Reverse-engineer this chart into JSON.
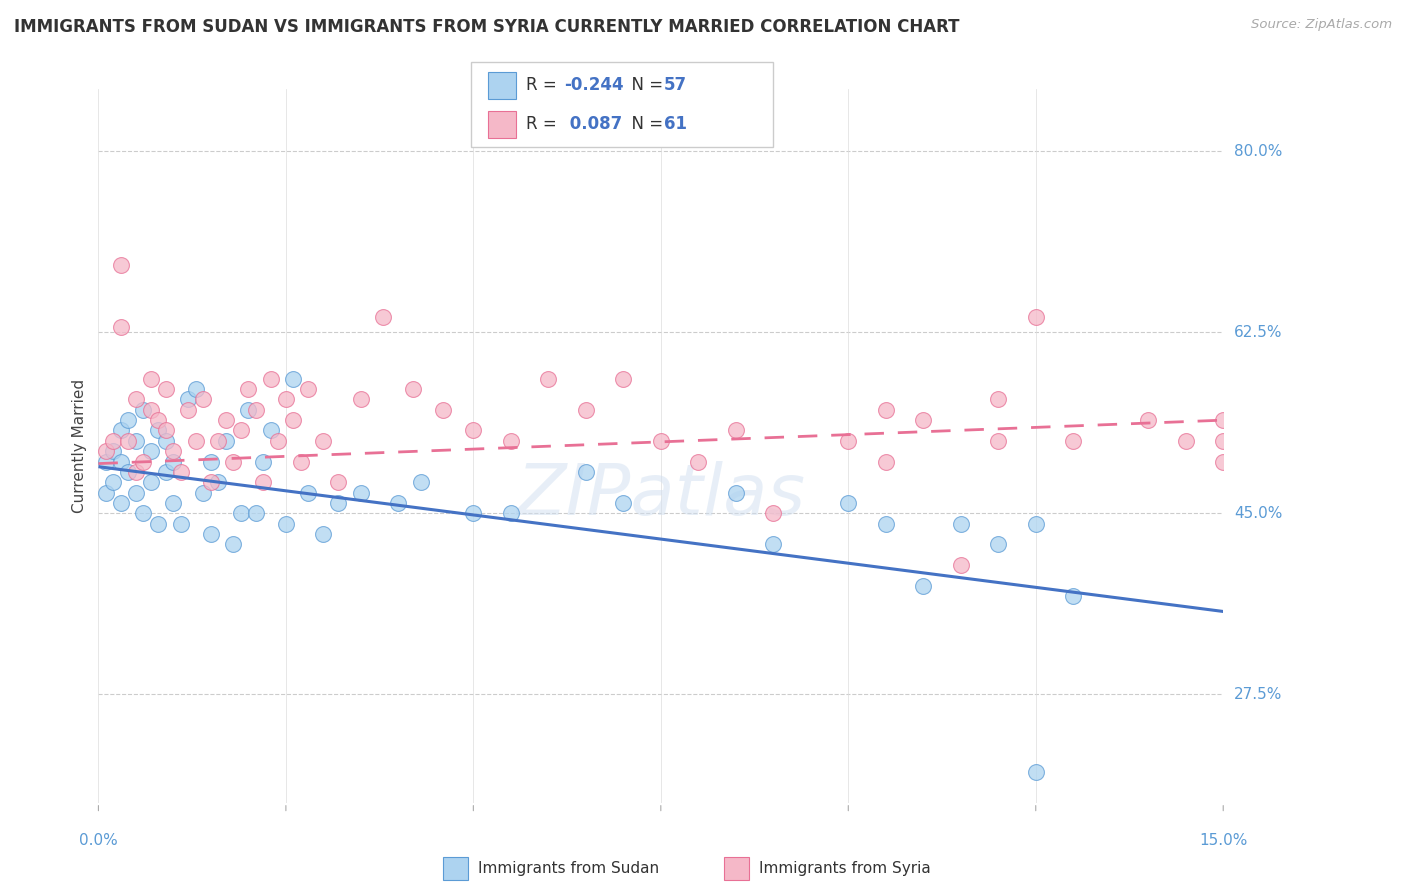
{
  "title": "IMMIGRANTS FROM SUDAN VS IMMIGRANTS FROM SYRIA CURRENTLY MARRIED CORRELATION CHART",
  "source": "Source: ZipAtlas.com",
  "ylabel": "Currently Married",
  "y_ticks": [
    0.275,
    0.45,
    0.625,
    0.8
  ],
  "y_tick_labels": [
    "27.5%",
    "45.0%",
    "62.5%",
    "80.0%"
  ],
  "x_ticks": [
    0.0,
    0.025,
    0.05,
    0.075,
    0.1,
    0.125,
    0.15
  ],
  "x_range": [
    0.0,
    0.15
  ],
  "y_range": [
    0.17,
    0.86
  ],
  "sudan_R": -0.244,
  "sudan_N": 57,
  "syria_R": 0.087,
  "syria_N": 61,
  "sudan_color": "#ADD3F0",
  "syria_color": "#F5B8C8",
  "sudan_edge_color": "#5B9BD5",
  "syria_edge_color": "#E87095",
  "sudan_line_color": "#4472C4",
  "syria_line_color": "#E87095",
  "legend_label_sudan": "Immigrants from Sudan",
  "legend_label_syria": "Immigrants from Syria",
  "sudan_trend_x": [
    0.0,
    0.15
  ],
  "sudan_trend_y": [
    0.495,
    0.355
  ],
  "syria_trend_x": [
    0.0,
    0.15
  ],
  "syria_trend_y": [
    0.498,
    0.54
  ],
  "sudan_x": [
    0.001,
    0.001,
    0.002,
    0.002,
    0.003,
    0.003,
    0.003,
    0.004,
    0.004,
    0.005,
    0.005,
    0.006,
    0.006,
    0.007,
    0.007,
    0.008,
    0.008,
    0.009,
    0.009,
    0.01,
    0.01,
    0.011,
    0.012,
    0.013,
    0.014,
    0.015,
    0.015,
    0.016,
    0.017,
    0.018,
    0.019,
    0.02,
    0.021,
    0.022,
    0.023,
    0.025,
    0.026,
    0.028,
    0.03,
    0.032,
    0.035,
    0.04,
    0.043,
    0.05,
    0.055,
    0.065,
    0.07,
    0.085,
    0.09,
    0.1,
    0.105,
    0.11,
    0.115,
    0.12,
    0.125,
    0.13,
    0.125
  ],
  "sudan_y": [
    0.5,
    0.47,
    0.51,
    0.48,
    0.53,
    0.5,
    0.46,
    0.54,
    0.49,
    0.52,
    0.47,
    0.55,
    0.45,
    0.51,
    0.48,
    0.53,
    0.44,
    0.52,
    0.49,
    0.5,
    0.46,
    0.44,
    0.56,
    0.57,
    0.47,
    0.43,
    0.5,
    0.48,
    0.52,
    0.42,
    0.45,
    0.55,
    0.45,
    0.5,
    0.53,
    0.44,
    0.58,
    0.47,
    0.43,
    0.46,
    0.47,
    0.46,
    0.48,
    0.45,
    0.45,
    0.49,
    0.46,
    0.47,
    0.42,
    0.46,
    0.44,
    0.38,
    0.44,
    0.42,
    0.44,
    0.37,
    0.2
  ],
  "syria_x": [
    0.001,
    0.002,
    0.003,
    0.003,
    0.004,
    0.005,
    0.005,
    0.006,
    0.007,
    0.007,
    0.008,
    0.009,
    0.009,
    0.01,
    0.011,
    0.012,
    0.013,
    0.014,
    0.015,
    0.016,
    0.017,
    0.018,
    0.019,
    0.02,
    0.021,
    0.022,
    0.023,
    0.024,
    0.025,
    0.026,
    0.027,
    0.028,
    0.03,
    0.032,
    0.035,
    0.038,
    0.042,
    0.046,
    0.05,
    0.055,
    0.06,
    0.065,
    0.07,
    0.075,
    0.08,
    0.085,
    0.09,
    0.1,
    0.105,
    0.11,
    0.115,
    0.12,
    0.125,
    0.13,
    0.14,
    0.145,
    0.15,
    0.15,
    0.15,
    0.12,
    0.105
  ],
  "syria_y": [
    0.51,
    0.52,
    0.69,
    0.63,
    0.52,
    0.49,
    0.56,
    0.5,
    0.58,
    0.55,
    0.54,
    0.57,
    0.53,
    0.51,
    0.49,
    0.55,
    0.52,
    0.56,
    0.48,
    0.52,
    0.54,
    0.5,
    0.53,
    0.57,
    0.55,
    0.48,
    0.58,
    0.52,
    0.56,
    0.54,
    0.5,
    0.57,
    0.52,
    0.48,
    0.56,
    0.64,
    0.57,
    0.55,
    0.53,
    0.52,
    0.58,
    0.55,
    0.58,
    0.52,
    0.5,
    0.53,
    0.45,
    0.52,
    0.5,
    0.54,
    0.4,
    0.56,
    0.64,
    0.52,
    0.54,
    0.52,
    0.54,
    0.52,
    0.5,
    0.52,
    0.55
  ]
}
